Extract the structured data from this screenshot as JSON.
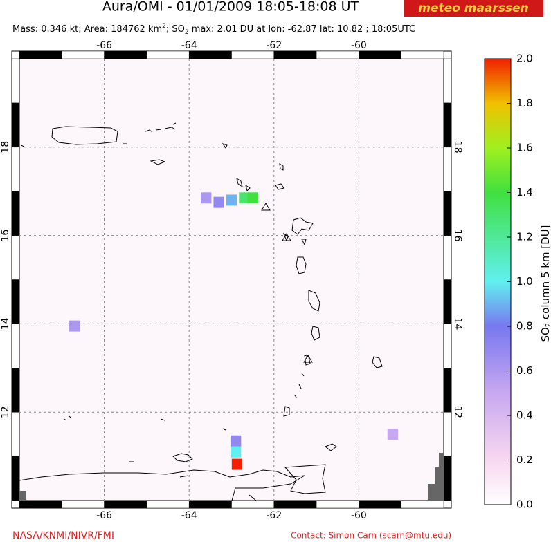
{
  "map": {
    "title": "Aura/OMI - 01/01/2009 18:05-18:08 UT",
    "logo": "meteo maarssen",
    "subtitle": [
      "Mass: 0.346 kt; Area: 184762 km",
      "2",
      "; SO",
      "2",
      " max: 2.01 DU at lon: -62.87 lat: 10.82 ; 18:05UTC"
    ],
    "lonlim": [
      -68,
      -58
    ],
    "latlim": [
      10,
      20
    ],
    "lon_ticks": [
      -66,
      -64,
      -62,
      -60
    ],
    "lat_ticks": [
      12,
      14,
      16,
      18
    ],
    "grid": true,
    "colorbar": {
      "label": [
        "SO",
        "2",
        " column 5 km [DU]"
      ],
      "lim": [
        0,
        2
      ],
      "ticks": [
        {
          "value": 0,
          "label": "0.0"
        },
        {
          "value": 0.2,
          "label": "0.2"
        },
        {
          "value": 0.4,
          "label": "0.4"
        },
        {
          "value": 0.6,
          "label": "0.6"
        },
        {
          "value": 0.8,
          "label": "0.8"
        },
        {
          "value": 1,
          "label": "1.0"
        },
        {
          "value": 1.2,
          "label": "1.2"
        },
        {
          "value": 1.4,
          "label": "1.4"
        },
        {
          "value": 1.6,
          "label": "1.6"
        },
        {
          "value": 1.8,
          "label": "1.8"
        },
        {
          "value": 2,
          "label": "2.0"
        }
      ],
      "colormap": [
        [
          0,
          "#ffffff"
        ],
        [
          0.2,
          "#f8d8f0"
        ],
        [
          0.5,
          "#c8a8f0"
        ],
        [
          0.8,
          "#7878f0"
        ],
        [
          1,
          "#60f0f0"
        ],
        [
          1.4,
          "#40e040"
        ],
        [
          1.6,
          "#a0f020"
        ],
        [
          1.8,
          "#f0c000"
        ],
        [
          2,
          "#f02000"
        ]
      ]
    },
    "pixels": [
      {
        "lon": -63.6,
        "lat": 16.85,
        "value": 0.6
      },
      {
        "lon": -63.3,
        "lat": 16.75,
        "value": 0.7
      },
      {
        "lon": -63.0,
        "lat": 16.8,
        "value": 0.9
      },
      {
        "lon": -62.7,
        "lat": 16.85,
        "value": 1.3
      },
      {
        "lon": -62.5,
        "lat": 16.85,
        "value": 1.4
      },
      {
        "lon": -62.9,
        "lat": 11.35,
        "value": 0.7
      },
      {
        "lon": -62.9,
        "lat": 11.1,
        "value": 1.0
      },
      {
        "lon": -62.87,
        "lat": 10.82,
        "value": 2.01
      },
      {
        "lon": -66.7,
        "lat": 13.95,
        "value": 0.6
      },
      {
        "lon": -59.2,
        "lat": 11.5,
        "value": 0.5
      }
    ],
    "footer_left": "NASA/KNMI/NIVR/FMI",
    "footer_right": "Contact: Simon Carn (scarn@mtu.edu)"
  }
}
